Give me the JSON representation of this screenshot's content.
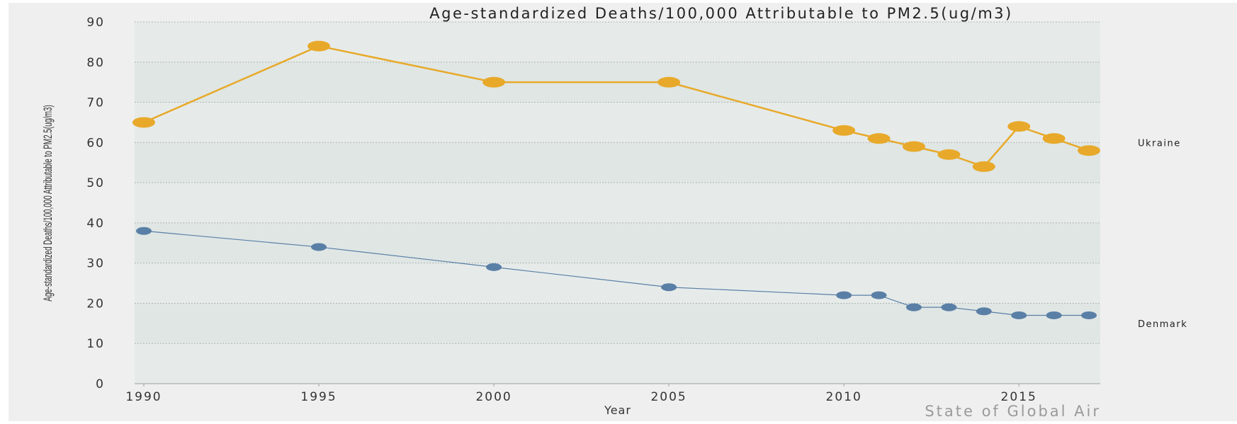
{
  "chart_data": {
    "type": "line",
    "title": "Age-standardized Deaths/100,000 Attributable to PM2.5(ug/m3)",
    "xlabel": "Year",
    "ylabel": "Age-standardized Deaths/100,000 Attributable to PM2.5(ug/m3)",
    "ylim": [
      0,
      90
    ],
    "yticks": [
      0,
      10,
      20,
      30,
      40,
      50,
      60,
      70,
      80,
      90
    ],
    "xlim": [
      1990,
      2017
    ],
    "xticks": [
      1990,
      1995,
      2000,
      2005,
      2010,
      2015
    ],
    "x": [
      1990,
      1995,
      2000,
      2005,
      2010,
      2011,
      2012,
      2013,
      2014,
      2015,
      2016,
      2017
    ],
    "grid": true,
    "series": [
      {
        "name": "Ukraine",
        "color": "#e8a92a",
        "values": [
          65,
          84,
          75,
          75,
          63,
          61,
          59,
          57,
          54,
          64,
          61,
          58
        ]
      },
      {
        "name": "Denmark",
        "color": "#5a7fa6",
        "values": [
          38,
          34,
          29,
          24,
          22,
          22,
          19,
          19,
          18,
          17,
          17,
          17
        ]
      }
    ],
    "source": "State of Global Air"
  },
  "colors": {
    "page_background": "#efefef",
    "band_light": "#dfe6e4",
    "band_dark": "#e6ebea",
    "grid": "#aeb7b5"
  }
}
